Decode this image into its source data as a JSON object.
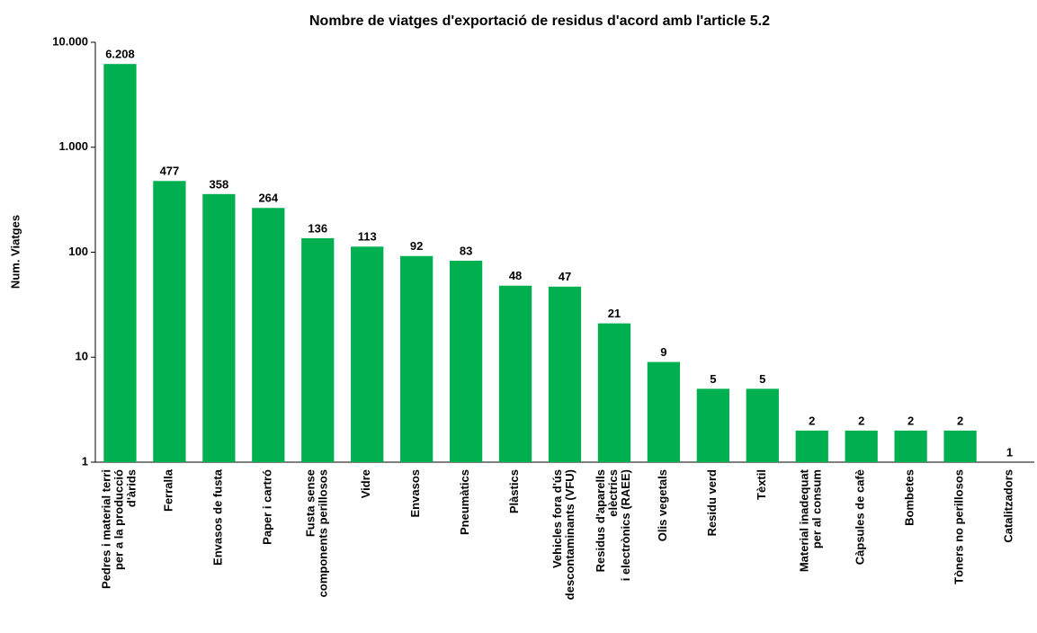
{
  "chart_data": {
    "type": "bar",
    "title": "Nombre de viatges d'exportació de residus d'acord amb l'article 5.2",
    "y_label": "Num. Viatges",
    "categories": [
      [
        "Pedres i material terri",
        "per a la producció",
        "d'àrids"
      ],
      [
        "Ferralla"
      ],
      [
        "Envasos de fusta"
      ],
      [
        "Paper i cartró"
      ],
      [
        "Fusta sense",
        "components perillosos"
      ],
      [
        "Vidre"
      ],
      [
        "Envasos"
      ],
      [
        "Pneumàtics"
      ],
      [
        "Plàstics"
      ],
      [
        "Vehicles fora d'ús",
        "descontaminants (VFU)"
      ],
      [
        "Residus d'aparells",
        "elèctrics",
        "i electrònics (RAEE)"
      ],
      [
        "Olis vegetals"
      ],
      [
        "Residu verd"
      ],
      [
        "Tèxtil"
      ],
      [
        "Material inadequat",
        "per al consum"
      ],
      [
        "Càpsules de cafè"
      ],
      [
        "Bombetes"
      ],
      [
        "Tòners no perillosos"
      ],
      [
        "Catalitzadors"
      ]
    ],
    "values": [
      6208,
      477,
      358,
      264,
      136,
      113,
      92,
      83,
      48,
      47,
      21,
      9,
      5,
      5,
      2,
      2,
      2,
      2,
      1
    ],
    "value_labels": [
      "6.208",
      "477",
      "358",
      "264",
      "136",
      "113",
      "92",
      "83",
      "48",
      "47",
      "21",
      "9",
      "5",
      "5",
      "2",
      "2",
      "2",
      "2",
      "1"
    ],
    "color": "#00b050",
    "log": true,
    "ylim": [
      1,
      10000
    ],
    "yticks": [
      1,
      10,
      100,
      {
        "value": 1000,
        "label": "1.000"
      },
      {
        "value": 10000,
        "label": "10.000"
      }
    ],
    "grid": false
  }
}
